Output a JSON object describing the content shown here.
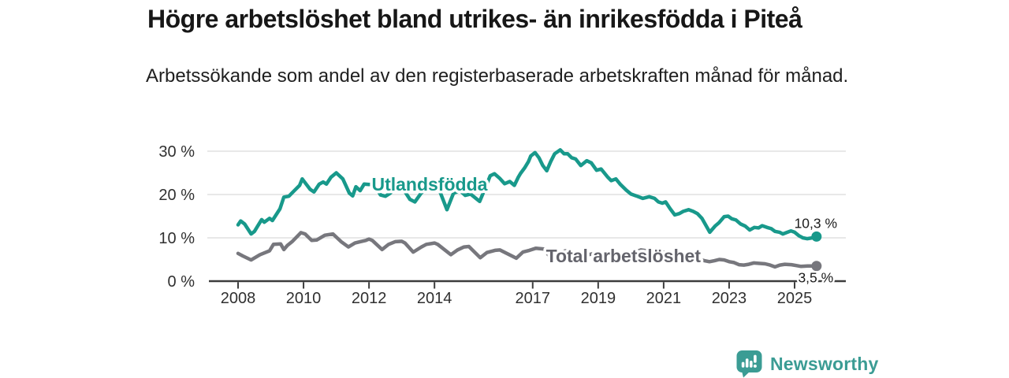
{
  "header": {
    "title": "Högre arbetslöshet bland utrikes- än inrikesfödda i Piteå",
    "subtitle": "Arbetssökande som andel av den registerbaserade arbetskraften månad för månad."
  },
  "chart_data": {
    "type": "line",
    "title": "Högre arbetslöshet bland utrikes- än inrikesfödda i Piteå",
    "subtitle": "Arbetssökande som andel av den registerbaserade arbetskraften månad för månad.",
    "grid": "horizontal",
    "legend_position": "inline-labels",
    "x_axis": {
      "ticks": [
        2008,
        2010,
        2012,
        2014,
        2017,
        2019,
        2021,
        2023,
        2025
      ],
      "range": [
        2007.1,
        2026.6
      ]
    },
    "y_axis": {
      "ticks": [
        0,
        10,
        20,
        30
      ],
      "suffix": " %",
      "range": [
        0,
        31.5
      ]
    },
    "colors": {
      "accent_teal": "#18998b",
      "neutral_gray": "#77777d",
      "axis": "#3d3d3d",
      "gridline": "#dadada",
      "value_label": "#1c1c1c"
    },
    "series": [
      {
        "name": "Total arbetslöshet",
        "color": "#77777d",
        "label_color": "#64646c",
        "inline_label": {
          "text": "Total arbetslöshet",
          "year": 2019.77,
          "value": 4.4
        },
        "end_label": {
          "text": "3,5 %",
          "position": "below"
        },
        "end_value": 3.5,
        "points": [
          [
            2008.0,
            6.4
          ],
          [
            2008.15,
            5.8
          ],
          [
            2008.4,
            4.9
          ],
          [
            2008.67,
            6.1
          ],
          [
            2008.96,
            7.0
          ],
          [
            2009.08,
            8.5
          ],
          [
            2009.3,
            8.6
          ],
          [
            2009.4,
            7.3
          ],
          [
            2009.5,
            8.2
          ],
          [
            2009.65,
            9.1
          ],
          [
            2009.92,
            11.2
          ],
          [
            2010.05,
            10.9
          ],
          [
            2010.25,
            9.4
          ],
          [
            2010.4,
            9.5
          ],
          [
            2010.65,
            10.6
          ],
          [
            2010.9,
            10.9
          ],
          [
            2011.15,
            9.1
          ],
          [
            2011.37,
            7.9
          ],
          [
            2011.57,
            8.8
          ],
          [
            2011.73,
            9.1
          ],
          [
            2011.9,
            9.4
          ],
          [
            2012.0,
            9.7
          ],
          [
            2012.1,
            9.4
          ],
          [
            2012.4,
            7.3
          ],
          [
            2012.6,
            8.5
          ],
          [
            2012.8,
            9.1
          ],
          [
            2013.0,
            9.2
          ],
          [
            2013.1,
            8.8
          ],
          [
            2013.35,
            6.7
          ],
          [
            2013.6,
            7.9
          ],
          [
            2013.75,
            8.5
          ],
          [
            2014.0,
            8.8
          ],
          [
            2014.1,
            8.5
          ],
          [
            2014.5,
            6.1
          ],
          [
            2014.7,
            7.2
          ],
          [
            2014.9,
            7.9
          ],
          [
            2015.05,
            8.0
          ],
          [
            2015.4,
            5.4
          ],
          [
            2015.6,
            6.6
          ],
          [
            2015.85,
            7.1
          ],
          [
            2016.0,
            7.2
          ],
          [
            2016.5,
            5.3
          ],
          [
            2016.7,
            6.7
          ],
          [
            2016.9,
            7.1
          ],
          [
            2017.1,
            7.6
          ],
          [
            2017.35,
            7.4
          ],
          [
            2017.5,
            5.9
          ],
          [
            2017.75,
            6.4
          ],
          [
            2018.0,
            7.0
          ],
          [
            2018.4,
            5.5
          ],
          [
            2018.7,
            6.1
          ],
          [
            2019.0,
            6.6
          ],
          [
            2019.4,
            5.2
          ],
          [
            2019.7,
            5.8
          ],
          [
            2020.0,
            6.3
          ],
          [
            2020.3,
            7.2
          ],
          [
            2020.6,
            6.9
          ],
          [
            2020.9,
            6.8
          ],
          [
            2021.1,
            6.6
          ],
          [
            2021.4,
            5.6
          ],
          [
            2021.7,
            5.7
          ],
          [
            2022.0,
            5.2
          ],
          [
            2022.25,
            4.7
          ],
          [
            2022.4,
            4.5
          ],
          [
            2022.55,
            4.7
          ],
          [
            2022.7,
            5.0
          ],
          [
            2022.85,
            4.9
          ],
          [
            2023.0,
            4.5
          ],
          [
            2023.15,
            4.3
          ],
          [
            2023.3,
            3.8
          ],
          [
            2023.45,
            3.7
          ],
          [
            2023.6,
            3.9
          ],
          [
            2023.75,
            4.2
          ],
          [
            2023.9,
            4.1
          ],
          [
            2024.1,
            4.0
          ],
          [
            2024.25,
            3.7
          ],
          [
            2024.4,
            3.3
          ],
          [
            2024.55,
            3.7
          ],
          [
            2024.7,
            3.9
          ],
          [
            2024.9,
            3.8
          ],
          [
            2025.05,
            3.6
          ],
          [
            2025.2,
            3.4
          ],
          [
            2025.4,
            3.5
          ],
          [
            2025.67,
            3.5
          ]
        ]
      },
      {
        "name": "Utlandsfödda",
        "color": "#18998b",
        "label_color": "#18998b",
        "inline_label": {
          "text": "Utlandsfödda",
          "year": 2013.85,
          "value": 20.9
        },
        "end_label": {
          "text": "10,3 %",
          "position": "above"
        },
        "end_value": 10.3,
        "points": [
          [
            2008.0,
            13.0
          ],
          [
            2008.08,
            13.9
          ],
          [
            2008.2,
            13.2
          ],
          [
            2008.4,
            10.9
          ],
          [
            2008.5,
            11.5
          ],
          [
            2008.6,
            12.7
          ],
          [
            2008.72,
            14.2
          ],
          [
            2008.8,
            13.6
          ],
          [
            2008.96,
            14.5
          ],
          [
            2009.05,
            14.0
          ],
          [
            2009.28,
            16.7
          ],
          [
            2009.4,
            19.4
          ],
          [
            2009.55,
            19.6
          ],
          [
            2009.72,
            20.9
          ],
          [
            2009.88,
            22.1
          ],
          [
            2009.96,
            23.6
          ],
          [
            2010.08,
            22.4
          ],
          [
            2010.2,
            21.2
          ],
          [
            2010.32,
            20.6
          ],
          [
            2010.48,
            22.4
          ],
          [
            2010.6,
            22.9
          ],
          [
            2010.7,
            22.4
          ],
          [
            2010.84,
            24.0
          ],
          [
            2011.0,
            25.0
          ],
          [
            2011.2,
            23.6
          ],
          [
            2011.4,
            20.3
          ],
          [
            2011.5,
            19.7
          ],
          [
            2011.6,
            21.8
          ],
          [
            2011.73,
            20.9
          ],
          [
            2011.85,
            22.4
          ],
          [
            2012.0,
            22.3
          ],
          [
            2012.15,
            22.5
          ],
          [
            2012.35,
            19.9
          ],
          [
            2012.5,
            19.6
          ],
          [
            2012.65,
            20.3
          ],
          [
            2012.8,
            21.4
          ],
          [
            2013.0,
            21.8
          ],
          [
            2013.25,
            18.9
          ],
          [
            2013.4,
            18.3
          ],
          [
            2013.6,
            20.4
          ],
          [
            2013.78,
            21.3
          ],
          [
            2014.0,
            21.8
          ],
          [
            2014.15,
            21.0
          ],
          [
            2014.38,
            16.5
          ],
          [
            2014.58,
            20.3
          ],
          [
            2014.78,
            20.9
          ],
          [
            2014.94,
            19.8
          ],
          [
            2015.1,
            20.1
          ],
          [
            2015.38,
            18.4
          ],
          [
            2015.55,
            21.5
          ],
          [
            2015.7,
            24.3
          ],
          [
            2015.83,
            24.8
          ],
          [
            2016.0,
            23.7
          ],
          [
            2016.14,
            22.5
          ],
          [
            2016.3,
            23.0
          ],
          [
            2016.44,
            22.1
          ],
          [
            2016.56,
            24.0
          ],
          [
            2016.63,
            24.9
          ],
          [
            2016.75,
            26.1
          ],
          [
            2016.87,
            27.6
          ],
          [
            2016.94,
            28.9
          ],
          [
            2017.07,
            29.7
          ],
          [
            2017.19,
            28.5
          ],
          [
            2017.31,
            26.7
          ],
          [
            2017.43,
            25.5
          ],
          [
            2017.55,
            27.6
          ],
          [
            2017.67,
            29.4
          ],
          [
            2017.84,
            30.3
          ],
          [
            2017.96,
            29.4
          ],
          [
            2018.07,
            29.4
          ],
          [
            2018.19,
            28.5
          ],
          [
            2018.31,
            28.2
          ],
          [
            2018.47,
            26.7
          ],
          [
            2018.65,
            27.8
          ],
          [
            2018.79,
            27.3
          ],
          [
            2018.95,
            25.6
          ],
          [
            2019.09,
            25.9
          ],
          [
            2019.28,
            24.1
          ],
          [
            2019.4,
            23.2
          ],
          [
            2019.54,
            23.6
          ],
          [
            2019.68,
            22.3
          ],
          [
            2019.86,
            21.0
          ],
          [
            2020.0,
            20.1
          ],
          [
            2020.16,
            19.7
          ],
          [
            2020.36,
            19.1
          ],
          [
            2020.56,
            19.5
          ],
          [
            2020.72,
            19.1
          ],
          [
            2020.84,
            18.3
          ],
          [
            2020.96,
            18.0
          ],
          [
            2021.06,
            18.3
          ],
          [
            2021.2,
            16.7
          ],
          [
            2021.34,
            15.3
          ],
          [
            2021.48,
            15.6
          ],
          [
            2021.6,
            16.1
          ],
          [
            2021.76,
            16.5
          ],
          [
            2021.9,
            16.1
          ],
          [
            2022.03,
            15.6
          ],
          [
            2022.17,
            14.5
          ],
          [
            2022.41,
            11.3
          ],
          [
            2022.57,
            12.7
          ],
          [
            2022.69,
            13.5
          ],
          [
            2022.85,
            14.9
          ],
          [
            2022.97,
            15.0
          ],
          [
            2023.08,
            14.4
          ],
          [
            2023.21,
            14.1
          ],
          [
            2023.35,
            13.2
          ],
          [
            2023.49,
            12.7
          ],
          [
            2023.63,
            11.8
          ],
          [
            2023.77,
            12.4
          ],
          [
            2023.9,
            12.3
          ],
          [
            2024.01,
            12.8
          ],
          [
            2024.16,
            12.4
          ],
          [
            2024.29,
            12.1
          ],
          [
            2024.4,
            11.5
          ],
          [
            2024.54,
            11.3
          ],
          [
            2024.64,
            10.9
          ],
          [
            2024.75,
            11.2
          ],
          [
            2024.89,
            11.6
          ],
          [
            2025.0,
            11.3
          ],
          [
            2025.13,
            10.5
          ],
          [
            2025.25,
            10.0
          ],
          [
            2025.38,
            9.8
          ],
          [
            2025.55,
            10.0
          ],
          [
            2025.67,
            10.3
          ]
        ]
      }
    ]
  },
  "footer": {
    "brand": "Newsworthy",
    "logo_icon": "bar-chart-speech-bubble"
  }
}
